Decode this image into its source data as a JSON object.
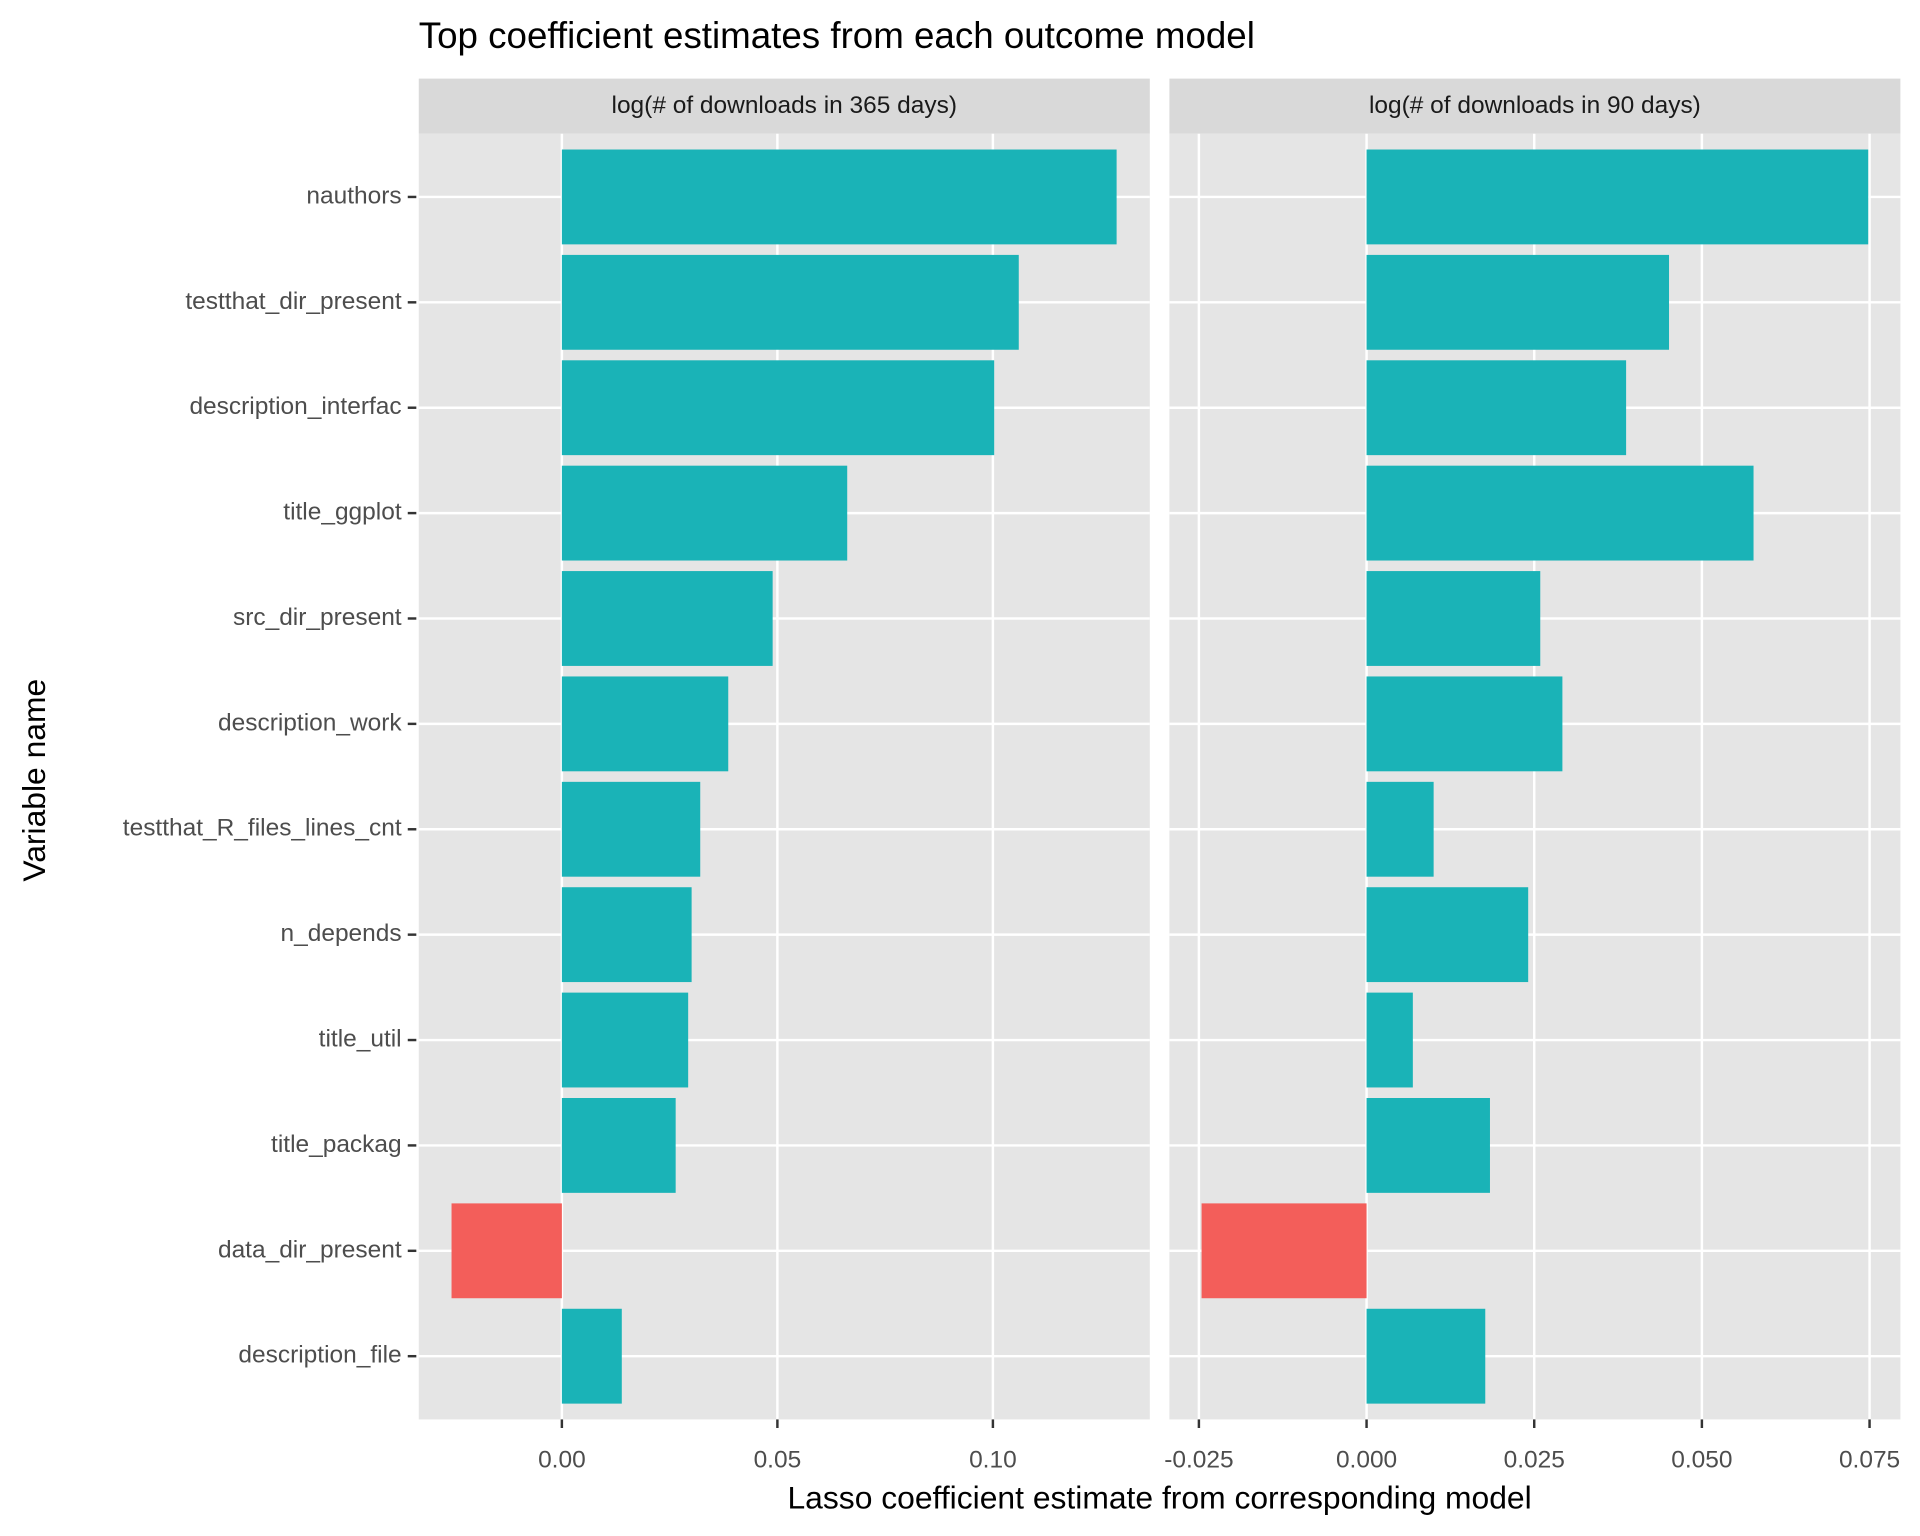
{
  "title": "Top coefficient estimates from each outcome model",
  "x_label": "Lasso coefficient estimate from corresponding model",
  "y_label": "Variable name",
  "categories": [
    "nauthors",
    "testthat_dir_present",
    "description_interfac",
    "title_ggplot",
    "src_dir_present",
    "description_work",
    "testthat_R_files_lines_cnt",
    "n_depends",
    "title_util",
    "title_packag",
    "data_dir_present",
    "description_file"
  ],
  "chart_data": [
    {
      "type": "bar",
      "orientation": "horizontal",
      "facet": "log(# of downloads in 365 days)",
      "values": [
        0.1287,
        0.106,
        0.1003,
        0.0662,
        0.0489,
        0.0386,
        0.0321,
        0.0301,
        0.0293,
        0.0264,
        -0.0256,
        0.0139
      ],
      "xlim": [
        -0.0332,
        0.1364
      ],
      "xticks": [
        {
          "value": 0,
          "label": "0.00"
        },
        {
          "value": 0.05,
          "label": "0.05"
        },
        {
          "value": 0.1,
          "label": "0.10"
        }
      ],
      "color_positive": "#1ab3b7",
      "color_negative": "#f35e5a",
      "grid": true
    },
    {
      "type": "bar",
      "orientation": "horizontal",
      "facet": "log(# of downloads in 90 days)",
      "values": [
        0.0748,
        0.0451,
        0.0387,
        0.0577,
        0.0259,
        0.0292,
        0.01,
        0.0241,
        0.0069,
        0.0184,
        -0.0246,
        0.0177
      ],
      "xlim": [
        -0.0294,
        0.0796
      ],
      "xticks": [
        {
          "value": -0.025,
          "label": "-0.025"
        },
        {
          "value": 0,
          "label": "0.000"
        },
        {
          "value": 0.025,
          "label": "0.025"
        },
        {
          "value": 0.05,
          "label": "0.050"
        },
        {
          "value": 0.075,
          "label": "0.075"
        }
      ],
      "color_positive": "#1ab3b7",
      "color_negative": "#f35e5a",
      "grid": true
    }
  ]
}
